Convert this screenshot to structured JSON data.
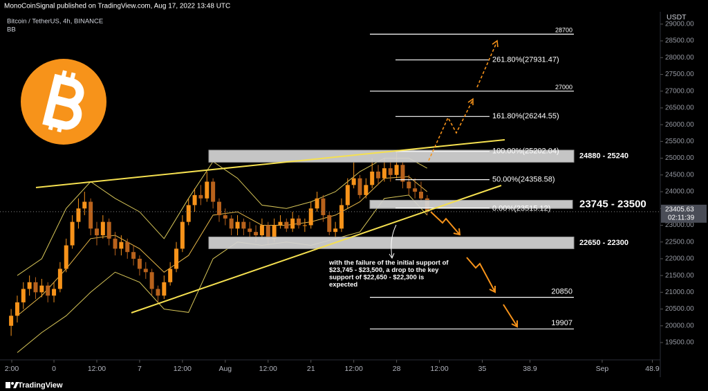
{
  "header": {
    "publisher": "MonoCoinSignal published on TradingView.com, Aug 17, 2022 13:48 UTC",
    "symbol": "Bitcoin / TetherUS, 4h, BINANCE",
    "indicator": "BB",
    "currency": "USDT",
    "countdown": "02:11:39",
    "brand": "TradingView"
  },
  "chart_data": {
    "type": "candlestick",
    "x": [
      -3.5,
      -3,
      -2.5,
      -2,
      -1.5,
      -1,
      -0.5,
      0,
      0.5,
      1,
      1.5,
      2,
      2.5,
      3,
      3.5,
      4,
      4.5,
      5,
      5.5,
      6,
      6.5,
      7,
      7.5,
      8,
      8.5,
      9,
      9.5,
      10,
      10.5,
      11,
      11.5,
      12,
      12.5,
      13,
      13.5,
      14,
      14.5,
      15,
      15.5,
      16,
      16.5,
      17,
      17.5,
      18,
      18.5,
      19,
      19.5,
      20,
      20.5,
      21,
      21.5,
      22,
      22.5,
      23,
      23.5,
      24,
      24.5,
      25,
      25.5,
      26,
      26.5,
      27,
      27.5,
      28,
      28.5,
      29,
      29.5,
      30,
      30.5
    ],
    "open": [
      20000,
      20300,
      20700,
      21100,
      21300,
      21000,
      21200,
      20900,
      21100,
      21700,
      22400,
      23100,
      23500,
      23700,
      22900,
      22700,
      23100,
      22600,
      22300,
      22500,
      22200,
      22000,
      21700,
      21600,
      21100,
      20900,
      21300,
      21700,
      22300,
      23100,
      23600,
      23900,
      23800,
      24300,
      23700,
      23300,
      23200,
      22900,
      23100,
      22900,
      22800,
      22700,
      23000,
      22600,
      23000,
      23100,
      22900,
      23200,
      23000,
      23000,
      23500,
      23800,
      23300,
      22800,
      22900,
      23600,
      24200,
      24400,
      23900,
      24200,
      24600,
      24400,
      24700,
      24500,
      24800,
      24300,
      24100,
      24000,
      23800
    ],
    "high": [
      20500,
      20900,
      21300,
      21500,
      21450,
      21400,
      21300,
      21300,
      21900,
      22600,
      23300,
      23800,
      24000,
      23800,
      23100,
      23300,
      23200,
      22800,
      22700,
      22600,
      22400,
      22100,
      21900,
      21700,
      21200,
      21500,
      21900,
      22500,
      23300,
      23800,
      24100,
      24200,
      24600,
      24400,
      23800,
      23500,
      23300,
      23300,
      23200,
      23100,
      23000,
      23200,
      23100,
      23200,
      23300,
      23200,
      23400,
      23300,
      23200,
      23700,
      24000,
      23900,
      23400,
      23100,
      23800,
      24400,
      24900,
      24500,
      24400,
      25000,
      24800,
      25000,
      24900,
      25200,
      24900,
      24500,
      24400,
      24300,
      23900
    ],
    "low": [
      19700,
      20100,
      20500,
      20900,
      20800,
      20850,
      20700,
      20700,
      21000,
      21600,
      22300,
      22900,
      23300,
      22700,
      22400,
      22600,
      22400,
      22100,
      22100,
      22000,
      21800,
      21500,
      21400,
      20900,
      20700,
      20800,
      21200,
      21600,
      22200,
      23000,
      23400,
      23600,
      23700,
      23500,
      23100,
      23000,
      22700,
      22700,
      22700,
      22600,
      22500,
      22600,
      22400,
      22500,
      22900,
      22800,
      22800,
      22900,
      22800,
      22900,
      23400,
      23100,
      22700,
      22600,
      22800,
      23500,
      24100,
      23800,
      23800,
      24100,
      24200,
      24300,
      24300,
      24400,
      24100,
      23900,
      23800,
      23700,
      23300
    ],
    "close": [
      20300,
      20700,
      21100,
      21300,
      21000,
      21200,
      20900,
      21100,
      21700,
      22400,
      23100,
      23500,
      23700,
      22900,
      22700,
      23100,
      22600,
      22300,
      22500,
      22200,
      22000,
      21700,
      21600,
      21100,
      20900,
      21300,
      21700,
      22300,
      23100,
      23600,
      23900,
      23800,
      24300,
      23700,
      23300,
      23200,
      22900,
      23100,
      22900,
      22800,
      22700,
      23000,
      22600,
      23000,
      23100,
      22900,
      23200,
      23000,
      23000,
      23500,
      23800,
      23300,
      22800,
      22900,
      23600,
      24200,
      24400,
      23900,
      24200,
      24600,
      24400,
      24700,
      24500,
      24800,
      24300,
      24100,
      24000,
      23800,
      23405.63
    ],
    "up_color": "#f7931a",
    "down_color": "#b8621c",
    "bands_x": [
      -3,
      -1,
      1,
      3,
      5,
      7,
      9,
      11,
      13,
      15,
      17,
      19,
      21,
      23,
      25,
      27,
      29,
      30.5
    ],
    "bands": [
      {
        "color": "#d9c759",
        "values": [
          21500,
          22000,
          23500,
          24300,
          23800,
          23400,
          22600,
          23800,
          24900,
          24400,
          23600,
          23500,
          23700,
          24000,
          24600,
          25000,
          25000,
          24700
        ]
      },
      {
        "color": "#e8b848",
        "values": [
          20300,
          20900,
          21700,
          22600,
          22700,
          22300,
          21600,
          22100,
          23300,
          23400,
          23000,
          23000,
          23100,
          23300,
          23700,
          24400,
          24450,
          24000
        ]
      },
      {
        "color": "#d9c759",
        "values": [
          19200,
          19800,
          20300,
          21000,
          21600,
          21300,
          20500,
          20400,
          22000,
          22500,
          22400,
          22500,
          22400,
          22600,
          22800,
          23800,
          23900,
          23300
        ]
      }
    ],
    "xlim": [
      -4.41,
      49.55
    ],
    "xticks": [
      {
        "value": -3.45,
        "label": "2:00"
      },
      0,
      {
        "value": 3.5,
        "label": "12:00"
      },
      7,
      {
        "value": 10.5,
        "label": "12:00"
      },
      {
        "value": 14,
        "label": "Aug"
      },
      {
        "value": 17.5,
        "label": "12:00"
      },
      21,
      {
        "value": 24.5,
        "label": "12:00"
      },
      28,
      {
        "value": 31.5,
        "label": "12:00"
      },
      35,
      38.9,
      {
        "value": 44.8,
        "label": "Sep"
      },
      48.9
    ],
    "xtick_labels_fix": null,
    "ylim": [
      18984,
      29368
    ],
    "yticks": [
      {
        "value": 19500,
        "label": "19500.00"
      },
      {
        "value": 20000,
        "label": "20000.00"
      },
      {
        "value": 20500,
        "label": "20500.00"
      },
      {
        "value": 21000,
        "label": "21000.00"
      },
      {
        "value": 21500,
        "label": "21500.00"
      },
      {
        "value": 22000,
        "label": "22000.00"
      },
      {
        "value": 22500,
        "label": "22500.00"
      },
      {
        "value": 23000,
        "label": "23000.00"
      },
      {
        "value": 23500,
        "label": "23500.00"
      },
      {
        "value": 24000,
        "label": "24000.00"
      },
      {
        "value": 24500,
        "label": "24500.00"
      },
      {
        "value": 25000,
        "label": "25000.00"
      },
      {
        "value": 25500,
        "label": "25500.00"
      },
      {
        "value": 26000,
        "label": "26000.00"
      },
      {
        "value": 26500,
        "label": "26500.00"
      },
      {
        "value": 27000,
        "label": "27000.00"
      },
      {
        "value": 27500,
        "label": "27500.00"
      },
      {
        "value": 28000,
        "label": "28000.00"
      },
      {
        "value": 28500,
        "label": "28500.00"
      },
      {
        "value": 29000,
        "label": "29000.00"
      }
    ],
    "zones": [
      {
        "low": 24880,
        "high": 25240,
        "label": "24880 - 25240"
      },
      {
        "low": 23500,
        "high": 23745,
        "label": "23745 - 23500"
      },
      {
        "low": 22300,
        "high": 22650,
        "label": "22650 - 22300"
      }
    ],
    "levels": [
      {
        "value": 28700
      },
      {
        "value": 27931.47,
        "label": "261.80%(27931.47)"
      },
      {
        "value": 27000
      },
      {
        "value": 26244.55,
        "label": "161.80%(26244.55)"
      },
      {
        "value": 25202.04,
        "label": "100.00%(25202.04)"
      },
      {
        "value": 24358.58,
        "label": "50.00%(24358.58)"
      },
      {
        "value": 23515.12,
        "label": "0.00%(23515.12)"
      },
      {
        "value": 20850
      },
      {
        "value": 19907
      }
    ],
    "annotation": [
      "with the failure of the initial support of",
      "$23,745 - $23,500, a drop to the key",
      "support of $22,650 - $22,300 is",
      "expected"
    ]
  }
}
